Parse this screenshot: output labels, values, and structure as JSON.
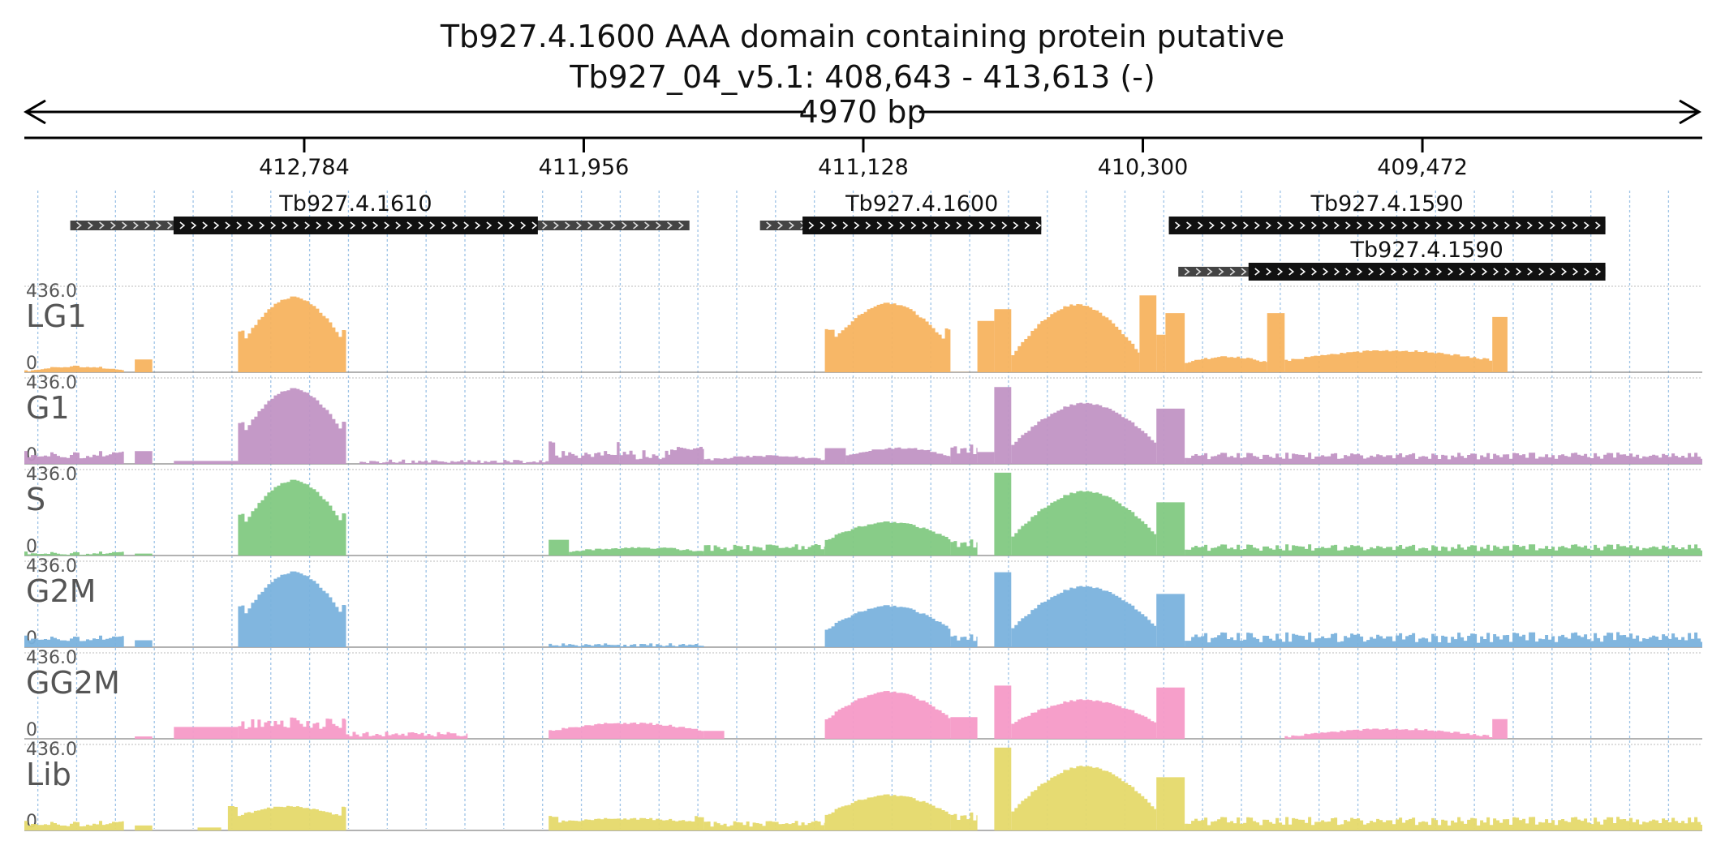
{
  "chart_data": {
    "type": "area",
    "title": "Tb927.4.1600  AAA domain containing protein  putative",
    "subtitle": "Tb927_04_v5.1: 408,643 - 413,613 (-)",
    "span_label": "4970 bp",
    "region": {
      "chrom": "Tb927_04_v5.1",
      "start": 408643,
      "end": 413613,
      "strand": "-"
    },
    "ticks": [
      {
        "pos": 412784,
        "label": "412,784"
      },
      {
        "pos": 411956,
        "label": "411,956"
      },
      {
        "pos": 411128,
        "label": "411,128"
      },
      {
        "pos": 410300,
        "label": "410,300"
      },
      {
        "pos": 409472,
        "label": "409,472"
      }
    ],
    "genes": [
      {
        "name": "Tb927.4.1610",
        "row": 0,
        "utr_start": 413477,
        "utr_end": 411643,
        "cds_start": 413171,
        "cds_end": 412092
      },
      {
        "name": "Tb927.4.1600",
        "row": 0,
        "utr_start": 411434,
        "utr_end": 410601,
        "cds_start": 411308,
        "cds_end": 410601
      },
      {
        "name": "Tb927.4.1590",
        "row": 0,
        "utr_start": 410223,
        "utr_end": 408930,
        "cds_start": 410223,
        "cds_end": 408930
      },
      {
        "name": "Tb927.4.1590",
        "row": 1,
        "utr_start": 410195,
        "utr_end": 408930,
        "cds_start": 409987,
        "cds_end": 408930
      }
    ],
    "y_max_label": "436.0",
    "y_min_label": "0",
    "ylim": [
      0,
      436
    ],
    "tracks": [
      {
        "name": "LG1",
        "color": "#f7b35f",
        "segments": [
          {
            "start": 413613,
            "end": 413318,
            "shape": "hump",
            "base": 5,
            "amp": 25
          },
          {
            "start": 413286,
            "end": 413234,
            "shape": "flat",
            "base": 65,
            "amp": 0
          },
          {
            "start": 412980,
            "end": 412660,
            "shape": "hump",
            "base": 130,
            "amp": 250,
            "edge": 210
          },
          {
            "start": 411242,
            "end": 410870,
            "shape": "hump",
            "base": 120,
            "amp": 230,
            "edge": 220
          },
          {
            "start": 410870,
            "end": 410810,
            "shape": "flat",
            "base": 0,
            "amp": 0
          },
          {
            "start": 410790,
            "end": 410740,
            "shape": "flat",
            "base": 260,
            "amp": 0
          },
          {
            "start": 410740,
            "end": 410690,
            "shape": "flat",
            "base": 320,
            "amp": 0
          },
          {
            "start": 410690,
            "end": 410310,
            "shape": "ramp",
            "base": 90,
            "amp": 280
          },
          {
            "start": 410310,
            "end": 410260,
            "shape": "flat",
            "base": 390,
            "amp": 0
          },
          {
            "start": 410260,
            "end": 410233,
            "shape": "flat",
            "base": 190,
            "amp": 0
          },
          {
            "start": 410233,
            "end": 410176,
            "shape": "flat",
            "base": 300,
            "amp": 0
          },
          {
            "start": 410176,
            "end": 409932,
            "shape": "ramp",
            "base": 50,
            "amp": 30
          },
          {
            "start": 409932,
            "end": 409880,
            "shape": "flat",
            "base": 300,
            "amp": 0
          },
          {
            "start": 409880,
            "end": 409265,
            "shape": "hump",
            "base": 60,
            "amp": 50
          },
          {
            "start": 409265,
            "end": 409220,
            "shape": "flat",
            "base": 280,
            "amp": 0
          }
        ]
      },
      {
        "name": "G1",
        "color": "#c193c4",
        "segments": [
          {
            "start": 413613,
            "end": 413318,
            "shape": "noise",
            "base": 40,
            "amp": 30
          },
          {
            "start": 413286,
            "end": 413234,
            "shape": "flat",
            "base": 65,
            "amp": 0
          },
          {
            "start": 413170,
            "end": 412980,
            "shape": "flat",
            "base": 15,
            "amp": 0
          },
          {
            "start": 412980,
            "end": 412660,
            "shape": "hump",
            "base": 130,
            "amp": 250,
            "edge": 210
          },
          {
            "start": 412620,
            "end": 412300,
            "shape": "noise",
            "base": 10,
            "amp": 10
          },
          {
            "start": 412300,
            "end": 412060,
            "shape": "noise",
            "base": 10,
            "amp": 8
          },
          {
            "start": 412060,
            "end": 411850,
            "shape": "noise",
            "base": 40,
            "amp": 30,
            "edge": 110
          },
          {
            "start": 411850,
            "end": 411700,
            "shape": "noise",
            "base": 40,
            "amp": 40
          },
          {
            "start": 411700,
            "end": 411600,
            "shape": "noise",
            "base": 80,
            "amp": 20
          },
          {
            "start": 411600,
            "end": 411242,
            "shape": "hump",
            "base": 20,
            "amp": 20
          },
          {
            "start": 411242,
            "end": 411180,
            "shape": "flat",
            "base": 80,
            "amp": 0
          },
          {
            "start": 411180,
            "end": 410870,
            "shape": "hump",
            "base": 40,
            "amp": 40
          },
          {
            "start": 410870,
            "end": 410790,
            "shape": "noise",
            "base": 60,
            "amp": 50
          },
          {
            "start": 410790,
            "end": 410740,
            "shape": "flat",
            "base": 60,
            "amp": 0
          },
          {
            "start": 410740,
            "end": 410690,
            "shape": "flat",
            "base": 390,
            "amp": 0
          },
          {
            "start": 410690,
            "end": 410260,
            "shape": "ramp",
            "base": 100,
            "amp": 230
          },
          {
            "start": 410260,
            "end": 410176,
            "shape": "flat",
            "base": 280,
            "amp": 0
          },
          {
            "start": 410176,
            "end": 408643,
            "shape": "noise",
            "base": 35,
            "amp": 25
          }
        ]
      },
      {
        "name": "S",
        "color": "#82c982",
        "segments": [
          {
            "start": 413613,
            "end": 413318,
            "shape": "noise",
            "base": 10,
            "amp": 8
          },
          {
            "start": 413286,
            "end": 413234,
            "shape": "flat",
            "base": 10,
            "amp": 0
          },
          {
            "start": 412980,
            "end": 412660,
            "shape": "hump",
            "base": 130,
            "amp": 250,
            "edge": 210
          },
          {
            "start": 412060,
            "end": 412000,
            "shape": "flat",
            "base": 80,
            "amp": 0
          },
          {
            "start": 412000,
            "end": 411600,
            "shape": "hump",
            "base": 20,
            "amp": 20
          },
          {
            "start": 411600,
            "end": 411242,
            "shape": "noise",
            "base": 35,
            "amp": 25
          },
          {
            "start": 411242,
            "end": 410870,
            "shape": "hump",
            "base": 80,
            "amp": 90
          },
          {
            "start": 410870,
            "end": 410790,
            "shape": "noise",
            "base": 50,
            "amp": 40
          },
          {
            "start": 410740,
            "end": 410690,
            "shape": "flat",
            "base": 420,
            "amp": 0
          },
          {
            "start": 410690,
            "end": 410260,
            "shape": "ramp",
            "base": 100,
            "amp": 250
          },
          {
            "start": 410260,
            "end": 410176,
            "shape": "flat",
            "base": 270,
            "amp": 0
          },
          {
            "start": 410176,
            "end": 408643,
            "shape": "noise",
            "base": 35,
            "amp": 25
          }
        ]
      },
      {
        "name": "G2M",
        "color": "#7ab2dd",
        "segments": [
          {
            "start": 413613,
            "end": 413318,
            "shape": "noise",
            "base": 40,
            "amp": 20
          },
          {
            "start": 413286,
            "end": 413234,
            "shape": "flat",
            "base": 35,
            "amp": 0
          },
          {
            "start": 412980,
            "end": 412660,
            "shape": "hump",
            "base": 130,
            "amp": 250,
            "edge": 210
          },
          {
            "start": 412060,
            "end": 411600,
            "shape": "noise",
            "base": 10,
            "amp": 6
          },
          {
            "start": 411242,
            "end": 410870,
            "shape": "hump",
            "base": 90,
            "amp": 120
          },
          {
            "start": 410870,
            "end": 410790,
            "shape": "noise",
            "base": 40,
            "amp": 30
          },
          {
            "start": 410740,
            "end": 410690,
            "shape": "flat",
            "base": 380,
            "amp": 0
          },
          {
            "start": 410690,
            "end": 410260,
            "shape": "ramp",
            "base": 100,
            "amp": 230
          },
          {
            "start": 410260,
            "end": 410176,
            "shape": "flat",
            "base": 270,
            "amp": 0
          },
          {
            "start": 410176,
            "end": 408643,
            "shape": "noise",
            "base": 40,
            "amp": 45
          }
        ]
      },
      {
        "name": "GG2M",
        "color": "#f59ac7",
        "segments": [
          {
            "start": 413286,
            "end": 413234,
            "shape": "flat",
            "base": 12,
            "amp": 0
          },
          {
            "start": 413170,
            "end": 412980,
            "shape": "flat",
            "base": 60,
            "amp": 0
          },
          {
            "start": 412980,
            "end": 412660,
            "shape": "noise",
            "base": 70,
            "amp": 50
          },
          {
            "start": 412660,
            "end": 412300,
            "shape": "noise",
            "base": 20,
            "amp": 15
          },
          {
            "start": 412060,
            "end": 411600,
            "shape": "hump",
            "base": 40,
            "amp": 40
          },
          {
            "start": 411600,
            "end": 411540,
            "shape": "flat",
            "base": 40,
            "amp": 0
          },
          {
            "start": 411242,
            "end": 410870,
            "shape": "hump",
            "base": 100,
            "amp": 140
          },
          {
            "start": 410870,
            "end": 410790,
            "shape": "flat",
            "base": 110,
            "amp": 0
          },
          {
            "start": 410740,
            "end": 410690,
            "shape": "flat",
            "base": 270,
            "amp": 0
          },
          {
            "start": 410690,
            "end": 410260,
            "shape": "ramp",
            "base": 80,
            "amp": 130
          },
          {
            "start": 410260,
            "end": 410176,
            "shape": "flat",
            "base": 260,
            "amp": 0
          },
          {
            "start": 409880,
            "end": 409265,
            "shape": "hump",
            "base": 10,
            "amp": 40
          },
          {
            "start": 409265,
            "end": 409220,
            "shape": "flat",
            "base": 100,
            "amp": 0
          }
        ]
      },
      {
        "name": "Lib",
        "color": "#e5d96a",
        "segments": [
          {
            "start": 413613,
            "end": 413318,
            "shape": "noise",
            "base": 30,
            "amp": 20
          },
          {
            "start": 413286,
            "end": 413234,
            "shape": "flat",
            "base": 25,
            "amp": 0
          },
          {
            "start": 413100,
            "end": 413030,
            "shape": "flat",
            "base": 15,
            "amp": 0
          },
          {
            "start": 413010,
            "end": 412660,
            "shape": "hump",
            "base": 60,
            "amp": 60,
            "edge": 120
          },
          {
            "start": 412060,
            "end": 411600,
            "shape": "hump",
            "base": 40,
            "amp": 20,
            "edge": 70
          },
          {
            "start": 411600,
            "end": 411242,
            "shape": "noise",
            "base": 30,
            "amp": 20
          },
          {
            "start": 411242,
            "end": 410870,
            "shape": "hump",
            "base": 80,
            "amp": 100
          },
          {
            "start": 410870,
            "end": 410790,
            "shape": "noise",
            "base": 60,
            "amp": 40
          },
          {
            "start": 410740,
            "end": 410690,
            "shape": "flat",
            "base": 420,
            "amp": 0
          },
          {
            "start": 410690,
            "end": 410260,
            "shape": "ramp",
            "base": 100,
            "amp": 250
          },
          {
            "start": 410260,
            "end": 410176,
            "shape": "flat",
            "base": 270,
            "amp": 0
          },
          {
            "start": 410176,
            "end": 408643,
            "shape": "noise",
            "base": 40,
            "amp": 35
          }
        ]
      }
    ]
  }
}
